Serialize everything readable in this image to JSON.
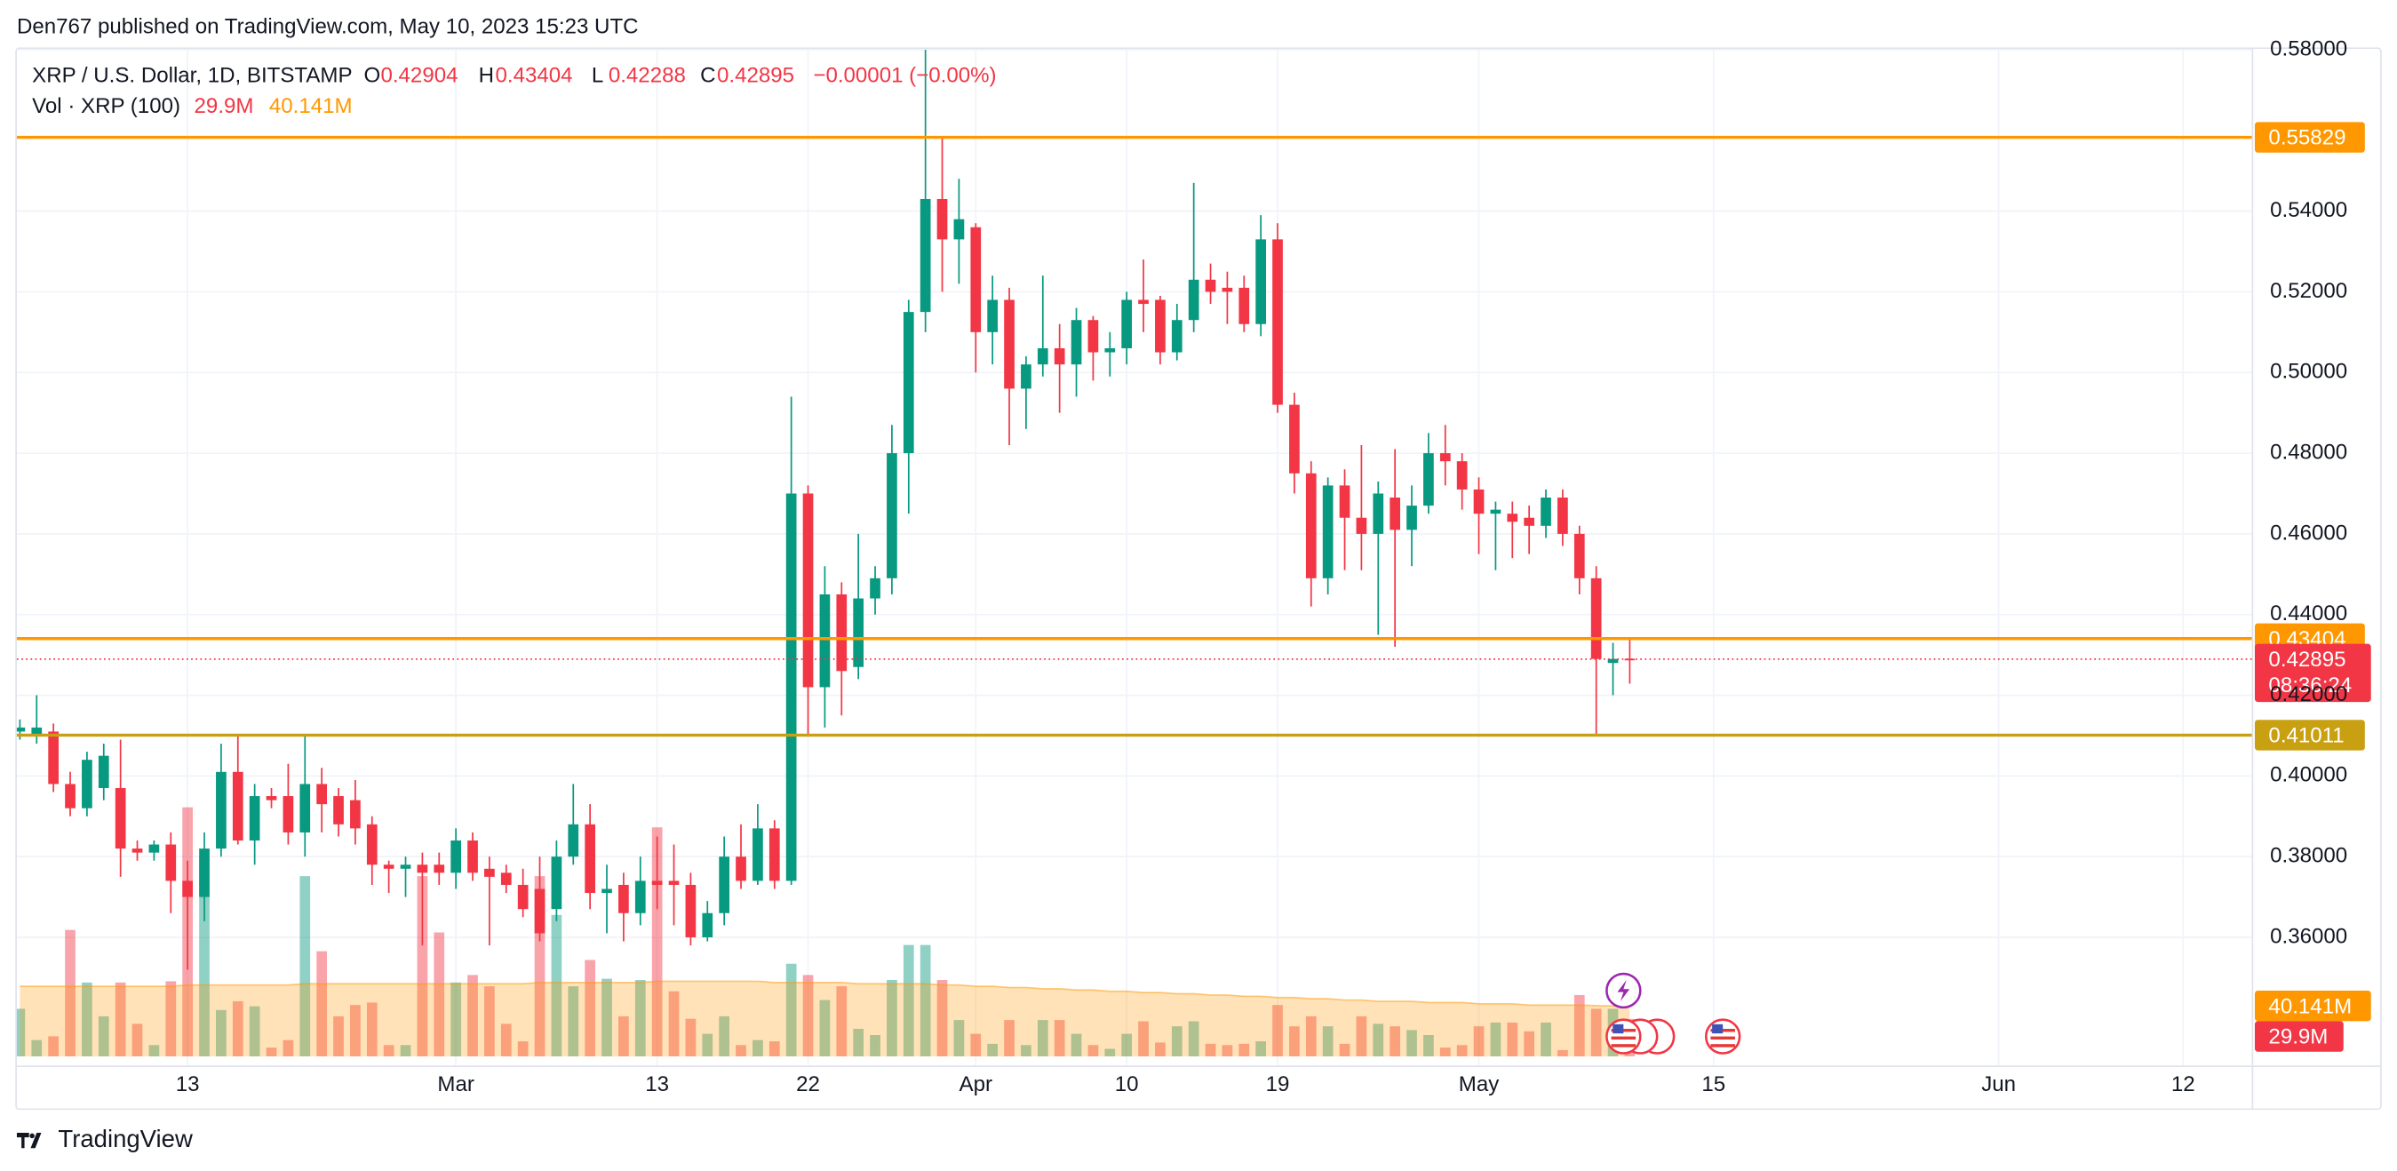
{
  "page": {
    "byline": "Den767 published on TradingView.com, May 10, 2023 15:23 UTC",
    "brand": "TradingView"
  },
  "chart_data": {
    "type": "candlestick",
    "title": "XRP / U.S. Dollar, 1D, BITSTAMP",
    "legend_keys": [
      "O",
      "H",
      "L",
      "C"
    ],
    "change_label": "−0.00001 (−0.00%)",
    "countdown": "08:36:24",
    "up_color": "#089981",
    "down_color": "#f23645",
    "grid": true,
    "x": [
      "2023-02-03",
      "2023-02-04",
      "2023-02-05",
      "2023-02-06",
      "2023-02-07",
      "2023-02-08",
      "2023-02-09",
      "2023-02-10",
      "2023-02-11",
      "2023-02-12",
      "2023-02-13",
      "2023-02-14",
      "2023-02-15",
      "2023-02-16",
      "2023-02-17",
      "2023-02-18",
      "2023-02-19",
      "2023-02-20",
      "2023-02-21",
      "2023-02-22",
      "2023-02-23",
      "2023-02-24",
      "2023-02-25",
      "2023-02-26",
      "2023-02-27",
      "2023-02-28",
      "2023-03-01",
      "2023-03-02",
      "2023-03-03",
      "2023-03-04",
      "2023-03-05",
      "2023-03-06",
      "2023-03-07",
      "2023-03-08",
      "2023-03-09",
      "2023-03-10",
      "2023-03-11",
      "2023-03-12",
      "2023-03-13",
      "2023-03-14",
      "2023-03-15",
      "2023-03-16",
      "2023-03-17",
      "2023-03-18",
      "2023-03-19",
      "2023-03-20",
      "2023-03-21",
      "2023-03-22",
      "2023-03-23",
      "2023-03-24",
      "2023-03-25",
      "2023-03-26",
      "2023-03-27",
      "2023-03-28",
      "2023-03-29",
      "2023-03-30",
      "2023-03-31",
      "2023-04-01",
      "2023-04-02",
      "2023-04-03",
      "2023-04-04",
      "2023-04-05",
      "2023-04-06",
      "2023-04-07",
      "2023-04-08",
      "2023-04-09",
      "2023-04-10",
      "2023-04-11",
      "2023-04-12",
      "2023-04-13",
      "2023-04-14",
      "2023-04-15",
      "2023-04-16",
      "2023-04-17",
      "2023-04-18",
      "2023-04-19",
      "2023-04-20",
      "2023-04-21",
      "2023-04-22",
      "2023-04-23",
      "2023-04-24",
      "2023-04-25",
      "2023-04-26",
      "2023-04-27",
      "2023-04-28",
      "2023-04-29",
      "2023-04-30",
      "2023-05-01",
      "2023-05-02",
      "2023-05-03",
      "2023-05-04",
      "2023-05-05",
      "2023-05-06",
      "2023-05-07",
      "2023-05-08",
      "2023-05-09",
      "2023-05-10"
    ],
    "open": [
      0.411,
      0.41,
      0.411,
      0.398,
      0.392,
      0.397,
      0.397,
      0.382,
      0.381,
      0.383,
      0.374,
      0.37,
      0.382,
      0.401,
      0.384,
      0.395,
      0.395,
      0.386,
      0.398,
      0.395,
      0.394,
      0.388,
      0.378,
      0.377,
      0.378,
      0.378,
      0.376,
      0.384,
      0.377,
      0.376,
      0.373,
      0.372,
      0.367,
      0.38,
      0.388,
      0.371,
      0.373,
      0.366,
      0.374,
      0.374,
      0.373,
      0.36,
      0.366,
      0.38,
      0.374,
      0.387,
      0.374,
      0.47,
      0.422,
      0.445,
      0.427,
      0.444,
      0.449,
      0.48,
      0.515,
      0.543,
      0.533,
      0.536,
      0.51,
      0.518,
      0.496,
      0.502,
      0.506,
      0.502,
      0.513,
      0.505,
      0.506,
      0.518,
      0.518,
      0.505,
      0.513,
      0.523,
      0.521,
      0.521,
      0.512,
      0.533,
      0.492,
      0.475,
      0.449,
      0.472,
      0.464,
      0.46,
      0.469,
      0.461,
      0.467,
      0.48,
      0.478,
      0.471,
      0.465,
      0.465,
      0.464,
      0.462,
      0.469,
      0.46,
      0.449,
      0.428,
      0.42904
    ],
    "high": [
      0.414,
      0.42,
      0.413,
      0.401,
      0.406,
      0.408,
      0.409,
      0.384,
      0.384,
      0.386,
      0.379,
      0.386,
      0.408,
      0.41,
      0.398,
      0.397,
      0.403,
      0.41,
      0.402,
      0.397,
      0.399,
      0.39,
      0.379,
      0.38,
      0.381,
      0.381,
      0.387,
      0.386,
      0.38,
      0.378,
      0.377,
      0.38,
      0.384,
      0.398,
      0.393,
      0.378,
      0.376,
      0.38,
      0.385,
      0.383,
      0.376,
      0.369,
      0.385,
      0.388,
      0.393,
      0.389,
      0.494,
      0.472,
      0.452,
      0.448,
      0.46,
      0.452,
      0.487,
      0.518,
      0.58,
      0.558,
      0.548,
      0.537,
      0.524,
      0.521,
      0.504,
      0.524,
      0.512,
      0.516,
      0.514,
      0.51,
      0.52,
      0.528,
      0.519,
      0.517,
      0.547,
      0.527,
      0.525,
      0.524,
      0.539,
      0.537,
      0.495,
      0.478,
      0.474,
      0.476,
      0.482,
      0.473,
      0.481,
      0.472,
      0.485,
      0.487,
      0.48,
      0.474,
      0.468,
      0.468,
      0.467,
      0.471,
      0.471,
      0.462,
      0.452,
      0.433,
      0.43404
    ],
    "low": [
      0.409,
      0.408,
      0.396,
      0.39,
      0.39,
      0.394,
      0.375,
      0.379,
      0.379,
      0.366,
      0.352,
      0.364,
      0.38,
      0.383,
      0.378,
      0.392,
      0.383,
      0.38,
      0.386,
      0.385,
      0.383,
      0.373,
      0.371,
      0.37,
      0.358,
      0.373,
      0.372,
      0.374,
      0.358,
      0.371,
      0.365,
      0.359,
      0.364,
      0.378,
      0.367,
      0.361,
      0.359,
      0.363,
      0.367,
      0.363,
      0.358,
      0.359,
      0.363,
      0.372,
      0.373,
      0.372,
      0.373,
      0.41,
      0.412,
      0.415,
      0.424,
      0.44,
      0.445,
      0.465,
      0.51,
      0.52,
      0.522,
      0.5,
      0.502,
      0.482,
      0.486,
      0.499,
      0.49,
      0.494,
      0.498,
      0.499,
      0.502,
      0.51,
      0.502,
      0.503,
      0.51,
      0.517,
      0.512,
      0.51,
      0.509,
      0.49,
      0.47,
      0.442,
      0.445,
      0.451,
      0.451,
      0.435,
      0.432,
      0.452,
      0.465,
      0.472,
      0.466,
      0.455,
      0.451,
      0.454,
      0.455,
      0.459,
      0.457,
      0.445,
      0.41,
      0.42,
      0.42288
    ],
    "close": [
      0.412,
      0.412,
      0.398,
      0.392,
      0.404,
      0.405,
      0.382,
      0.381,
      0.383,
      0.374,
      0.37,
      0.382,
      0.401,
      0.384,
      0.395,
      0.394,
      0.386,
      0.398,
      0.393,
      0.388,
      0.387,
      0.378,
      0.377,
      0.378,
      0.376,
      0.376,
      0.384,
      0.376,
      0.375,
      0.373,
      0.367,
      0.361,
      0.38,
      0.388,
      0.371,
      0.372,
      0.366,
      0.374,
      0.373,
      0.373,
      0.36,
      0.366,
      0.38,
      0.374,
      0.387,
      0.374,
      0.47,
      0.422,
      0.445,
      0.426,
      0.444,
      0.449,
      0.48,
      0.515,
      0.543,
      0.533,
      0.538,
      0.51,
      0.518,
      0.496,
      0.502,
      0.506,
      0.502,
      0.513,
      0.505,
      0.506,
      0.518,
      0.517,
      0.505,
      0.513,
      0.523,
      0.52,
      0.52,
      0.512,
      0.533,
      0.492,
      0.475,
      0.449,
      0.472,
      0.464,
      0.46,
      0.47,
      0.461,
      0.467,
      0.48,
      0.478,
      0.471,
      0.465,
      0.466,
      0.463,
      0.462,
      0.469,
      0.46,
      0.449,
      0.429,
      0.429,
      0.42895
    ],
    "xlim": [
      "2023-02-03",
      "2023-06-16"
    ],
    "xticks": [
      {
        "value": "2023-02-13",
        "label": "13"
      },
      {
        "value": "2023-03-01",
        "label": "Mar"
      },
      {
        "value": "2023-03-13",
        "label": "13"
      },
      {
        "value": "2023-03-22",
        "label": "22"
      },
      {
        "value": "2023-04-01",
        "label": "Apr"
      },
      {
        "value": "2023-04-10",
        "label": "10"
      },
      {
        "value": "2023-04-19",
        "label": "19"
      },
      {
        "value": "2023-05-01",
        "label": "May"
      },
      {
        "value": "2023-05-15",
        "label": "15"
      },
      {
        "value": "2023-06-01",
        "label": "Jun"
      },
      {
        "value": "2023-06-12",
        "label": "12"
      }
    ],
    "ylim": [
      0.3305,
      0.5802
    ],
    "yticks": [
      {
        "value": 0.36,
        "label": "0.36000"
      },
      {
        "value": 0.38,
        "label": "0.38000"
      },
      {
        "value": 0.4,
        "label": "0.40000"
      },
      {
        "value": 0.42,
        "label": "0.42000"
      },
      {
        "value": 0.44,
        "label": "0.44000"
      },
      {
        "value": 0.46,
        "label": "0.46000"
      },
      {
        "value": 0.48,
        "label": "0.48000"
      },
      {
        "value": 0.5,
        "label": "0.50000"
      },
      {
        "value": 0.52,
        "label": "0.52000"
      },
      {
        "value": 0.54,
        "label": "0.54000"
      },
      {
        "value": 0.58,
        "label": "0.58000"
      }
    ],
    "levels": [
      {
        "value": 0.55829,
        "color": "#ff9800"
      },
      {
        "value": 0.43404,
        "color": "#ff9800"
      },
      {
        "value": 0.41011,
        "color": "#c9a012"
      }
    ],
    "volume": {
      "name": "Vol · XRP (100)",
      "up_color": "rgba(8,153,129,0.45)",
      "down_color": "rgba(242,54,69,0.45)",
      "ylim": [
        0,
        805
      ],
      "last_label": "29.9M",
      "values": [
        38,
        13,
        16,
        101,
        59,
        32,
        59,
        26,
        9,
        60,
        199,
        160,
        37,
        44,
        40,
        7,
        13,
        144,
        84,
        32,
        41,
        43,
        9,
        9,
        144,
        99,
        59,
        65,
        56,
        26,
        12,
        144,
        113,
        56,
        77,
        62,
        32,
        61,
        183,
        52,
        30,
        18,
        32,
        9,
        13,
        12,
        74,
        65,
        45,
        56,
        22,
        17,
        61,
        89,
        89,
        61,
        29,
        18,
        10,
        29,
        9,
        29,
        29,
        18,
        9,
        6,
        18,
        28,
        11,
        24,
        28,
        10,
        9,
        10,
        12,
        41,
        24,
        32,
        24,
        10,
        32,
        26,
        24,
        21,
        17,
        7,
        9,
        24,
        27,
        27,
        20,
        27,
        5,
        49,
        38,
        38,
        29.9
      ]
    },
    "volume_ma": {
      "color": "#ff9800",
      "last_label": "40.141M",
      "values": [
        56,
        56,
        56,
        56,
        56,
        56,
        56,
        56,
        56,
        56,
        57,
        57,
        57,
        57,
        57,
        57,
        57,
        58,
        58,
        58,
        58,
        58,
        58,
        58,
        58,
        58,
        58,
        58,
        58,
        58,
        58,
        59,
        59,
        59,
        59,
        59,
        59,
        59,
        60,
        60,
        60,
        60,
        60,
        60,
        60,
        59,
        59,
        59,
        59,
        59,
        58,
        58,
        58,
        58,
        58,
        57,
        57,
        56,
        56,
        55,
        55,
        54,
        54,
        53,
        53,
        52,
        52,
        51,
        51,
        50,
        50,
        49,
        49,
        48,
        48,
        47,
        47,
        46,
        46,
        45,
        45,
        44,
        44,
        44,
        43,
        43,
        43,
        42,
        42,
        42,
        41,
        41,
        41,
        41,
        40.5,
        40.3,
        40.141
      ]
    }
  }
}
